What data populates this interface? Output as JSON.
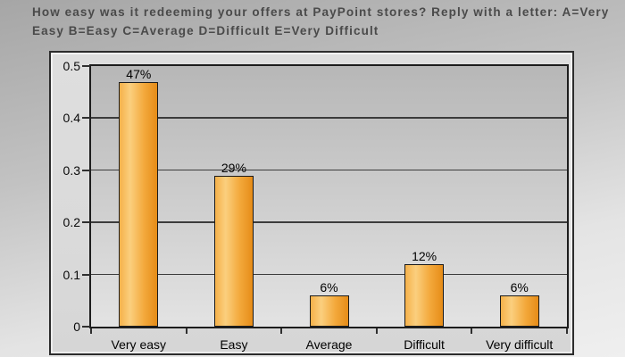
{
  "title": {
    "text": "How easy was it redeeming your offers at PayPoint stores? Reply with a letter: A=Very Easy B=Easy C=Average D=Difficult E=Very Difficult"
  },
  "colors": {
    "bar_light": "#FBCF7E",
    "bar_mid": "#F3A93C",
    "bar_dark": "#E68C18",
    "bar_border": "#1B1B1B",
    "grid_line": "#3C3C3C",
    "plot_bg_top": "#B7B7B7",
    "plot_bg_bottom": "#E3E3E3",
    "frame_bg": "#DADADA",
    "page_bg_top": "#A6A6A6",
    "page_bg_bottom": "#EFEFEF",
    "title_text": "#4A4A4A",
    "axis_text": "#0A0A0A"
  },
  "chart_data": {
    "type": "bar",
    "title": "",
    "xlabel": "",
    "ylabel": "",
    "categories": [
      "Very easy",
      "Easy",
      "Average",
      "Difficult",
      "Very difficult"
    ],
    "values": [
      0.47,
      0.29,
      0.06,
      0.12,
      0.06
    ],
    "bar_labels": [
      "47%",
      "29%",
      "6%",
      "12%",
      "6%"
    ],
    "ylim": [
      0,
      0.5
    ],
    "yticks": [
      0.5,
      0.4,
      0.3,
      0.2,
      0.1,
      0
    ],
    "ytick_labels": [
      "0.5",
      "0.4",
      "0.3",
      "0.2",
      "0.1",
      "0"
    ],
    "grid": true,
    "legend": false
  }
}
